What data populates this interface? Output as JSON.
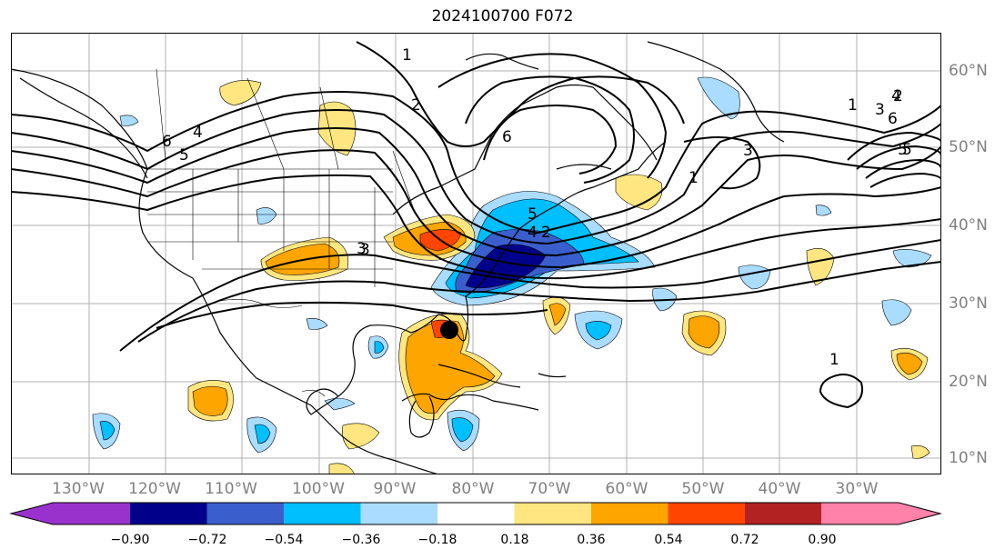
{
  "title": "2024100700 F072",
  "lon_labels": [
    "130°W",
    "120°W",
    "110°W",
    "100°W",
    "90°W",
    "80°W",
    "70°W",
    "60°W",
    "50°W",
    "40°W",
    "30°W"
  ],
  "lat_labels": [
    "60°N",
    "50°N",
    "40°N",
    "30°N",
    "20°N",
    "10°N"
  ],
  "contour_labels": [
    "6",
    "5",
    "4",
    "2",
    "3",
    "6",
    "5",
    "1",
    "4",
    "2",
    "1",
    "3",
    "1",
    "2",
    "3",
    "4",
    "5",
    "6",
    "5",
    "3",
    "1"
  ],
  "colorbar": {
    "ticks": [
      "−0.90",
      "−0.72",
      "−0.54",
      "−0.36",
      "−0.18",
      "0.18",
      "0.36",
      "0.54",
      "0.72",
      "0.90"
    ],
    "colors": [
      "#9932cc",
      "#00008b",
      "#3a5fcd",
      "#00bfff",
      "#aadcff",
      "#ffffff",
      "#ffe680",
      "#ffa500",
      "#ff4500",
      "#b22222",
      "#ff82ab"
    ]
  },
  "marker": "storm-center-marker"
}
